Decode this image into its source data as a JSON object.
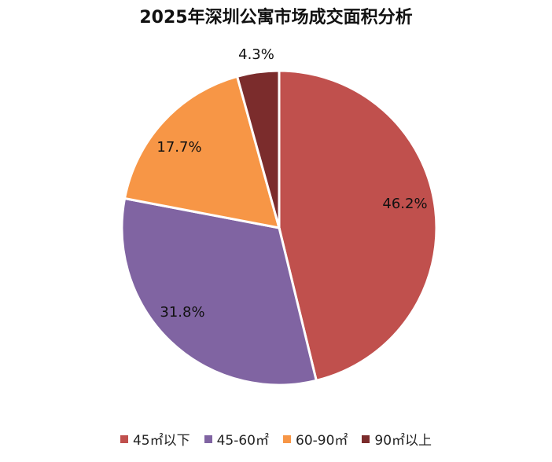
{
  "chart_data": {
    "type": "pie",
    "title": "2025年深圳公寓市场成交面积分析",
    "categories": [
      "45㎡以下",
      "45-60㎡",
      "60-90㎡",
      "90㎡以上"
    ],
    "values": [
      46.2,
      31.8,
      17.7,
      4.3
    ],
    "labels": [
      "46.2%",
      "31.8%",
      "17.7%",
      "4.3%"
    ],
    "colors": [
      "#c0504d",
      "#8064a2",
      "#f79646",
      "#7b2c2c"
    ],
    "legend_position": "bottom"
  }
}
